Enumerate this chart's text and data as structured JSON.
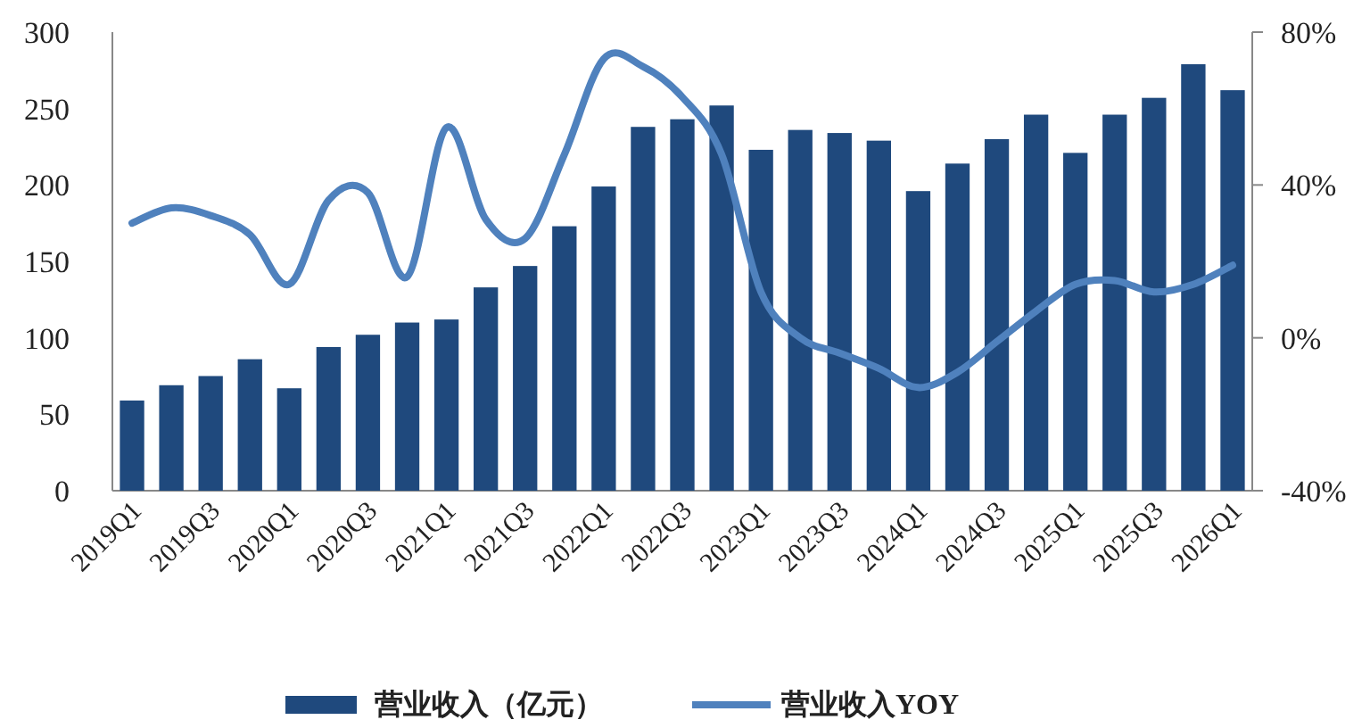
{
  "chart_data": {
    "type": "bar",
    "categories": [
      "2019Q1",
      null,
      "2019Q3",
      null,
      "2020Q1",
      null,
      "2020Q3",
      null,
      "2021Q1",
      null,
      "2021Q3",
      null,
      "2022Q1",
      null,
      "2022Q3",
      null,
      "2023Q1",
      null,
      "2023Q3",
      null,
      "2024Q1",
      null,
      "2024Q3",
      null,
      "2025Q1",
      null,
      "2025Q3",
      null,
      "2026Q1"
    ],
    "series": [
      {
        "name": "营业收入（亿元）",
        "color": "#1f497d",
        "values": [
          59,
          69,
          75,
          86,
          67,
          94,
          102,
          110,
          112,
          133,
          147,
          173,
          199,
          238,
          243,
          252,
          223,
          236,
          234,
          229,
          196,
          214,
          230,
          246,
          221,
          246,
          257,
          279,
          262
        ]
      },
      {
        "name": "营业收入YOY",
        "type": "line",
        "axis": "y2",
        "color": "#4f81bd",
        "values": [
          30,
          34,
          32,
          27,
          14,
          36,
          38,
          16,
          55,
          31,
          26,
          48,
          73,
          71,
          63,
          48,
          12,
          0,
          -4,
          -8,
          -13,
          -9,
          -1,
          7,
          14,
          15,
          12,
          14,
          19
        ]
      }
    ],
    "ylim": [
      0,
      300
    ],
    "yticks": [
      0,
      50,
      100,
      150,
      200,
      250,
      300
    ],
    "y2lim": [
      -40,
      80
    ],
    "y2ticks": [
      {
        "value": -40,
        "label": "-40%"
      },
      {
        "value": 0,
        "label": "0%"
      },
      {
        "value": 40,
        "label": "40%"
      },
      {
        "value": 80,
        "label": "80%"
      }
    ],
    "legend": "bottom",
    "grid": false
  }
}
